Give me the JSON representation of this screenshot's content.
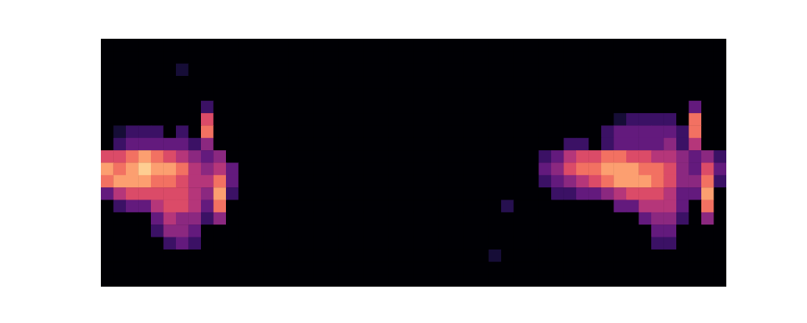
{
  "chart_data": {
    "type": "heatmap",
    "tick_labels": false,
    "color_range": [
      0,
      1
    ],
    "cells": [
      [
        0,
        0,
        0,
        0,
        0,
        0,
        0,
        0,
        0,
        0,
        0,
        0,
        0,
        0,
        0,
        0,
        0,
        0,
        0,
        0,
        0,
        0,
        0,
        0,
        0,
        0,
        0,
        0,
        0,
        0,
        0,
        0,
        0,
        0,
        0,
        0,
        0,
        0,
        0,
        0,
        0,
        0,
        0,
        0,
        0,
        0,
        0,
        0,
        0,
        0
      ],
      [
        0,
        0,
        0,
        0,
        0,
        0,
        0,
        0,
        0,
        0,
        0,
        0,
        0,
        0,
        0,
        0,
        0,
        0,
        0,
        0,
        0,
        0,
        0,
        0,
        0,
        0,
        0,
        0,
        0,
        0,
        0,
        0,
        0,
        0,
        0,
        0,
        0,
        0,
        0,
        0,
        0,
        0,
        0,
        0,
        0,
        0,
        0,
        0,
        0,
        0
      ],
      [
        0,
        0,
        0,
        0,
        0,
        0,
        0.1,
        0,
        0,
        0,
        0,
        0,
        0,
        0,
        0,
        0,
        0,
        0,
        0,
        0,
        0,
        0,
        0,
        0,
        0,
        0,
        0,
        0,
        0,
        0,
        0,
        0,
        0,
        0,
        0,
        0,
        0,
        0,
        0,
        0,
        0,
        0,
        0,
        0,
        0,
        0,
        0,
        0,
        0,
        0
      ],
      [
        0,
        0,
        0,
        0,
        0,
        0,
        0,
        0,
        0,
        0,
        0,
        0,
        0,
        0,
        0,
        0,
        0,
        0,
        0,
        0,
        0,
        0,
        0,
        0,
        0,
        0,
        0,
        0,
        0,
        0,
        0,
        0,
        0,
        0,
        0,
        0,
        0,
        0,
        0,
        0,
        0,
        0,
        0,
        0,
        0,
        0,
        0,
        0,
        0,
        0
      ],
      [
        0,
        0,
        0,
        0,
        0,
        0,
        0,
        0,
        0,
        0,
        0,
        0,
        0,
        0,
        0,
        0,
        0,
        0,
        0,
        0,
        0,
        0,
        0,
        0,
        0,
        0,
        0,
        0,
        0,
        0,
        0,
        0,
        0,
        0,
        0,
        0,
        0,
        0,
        0,
        0,
        0,
        0,
        0,
        0,
        0,
        0,
        0,
        0,
        0,
        0
      ],
      [
        0,
        0,
        0,
        0,
        0,
        0,
        0,
        0,
        0.2,
        0,
        0,
        0,
        0,
        0,
        0,
        0,
        0,
        0,
        0,
        0,
        0,
        0,
        0,
        0,
        0,
        0,
        0,
        0,
        0,
        0,
        0,
        0,
        0,
        0,
        0,
        0,
        0,
        0,
        0,
        0,
        0,
        0,
        0,
        0,
        0,
        0,
        0,
        0.3,
        0,
        0
      ],
      [
        0,
        0,
        0,
        0,
        0,
        0,
        0,
        0,
        0.6,
        0,
        0,
        0,
        0,
        0,
        0,
        0,
        0,
        0,
        0,
        0,
        0,
        0,
        0,
        0,
        0,
        0,
        0,
        0,
        0,
        0,
        0,
        0,
        0,
        0,
        0,
        0,
        0,
        0,
        0,
        0,
        0,
        0.1,
        0.2,
        0.2,
        0.2,
        0.2,
        0,
        0.7,
        0,
        0
      ],
      [
        0,
        0.1,
        0.2,
        0.2,
        0.2,
        0,
        0.2,
        0,
        0.7,
        0,
        0,
        0,
        0,
        0,
        0,
        0,
        0,
        0,
        0,
        0,
        0,
        0,
        0,
        0,
        0,
        0,
        0,
        0,
        0,
        0,
        0,
        0,
        0,
        0,
        0,
        0,
        0,
        0,
        0,
        0,
        0.2,
        0.3,
        0.3,
        0.3,
        0.3,
        0.3,
        0.2,
        0.7,
        0,
        0
      ],
      [
        0,
        0.2,
        0.3,
        0.3,
        0.3,
        0.3,
        0.3,
        0.2,
        0.4,
        0,
        0,
        0,
        0,
        0,
        0,
        0,
        0,
        0,
        0,
        0,
        0,
        0,
        0,
        0,
        0,
        0,
        0,
        0,
        0,
        0,
        0,
        0,
        0,
        0,
        0,
        0,
        0,
        0.2,
        0.2,
        0,
        0.2,
        0.3,
        0.3,
        0.3,
        0.3,
        0.4,
        0.2,
        0.5,
        0,
        0
      ],
      [
        0.6,
        0.6,
        0.7,
        0.8,
        0.7,
        0.6,
        0.5,
        0.4,
        0.3,
        0.4,
        0,
        0,
        0,
        0,
        0,
        0,
        0,
        0,
        0,
        0,
        0,
        0,
        0,
        0,
        0,
        0,
        0,
        0,
        0,
        0,
        0,
        0,
        0,
        0,
        0,
        0.2,
        0.3,
        0.5,
        0.6,
        0.6,
        0.7,
        0.7,
        0.6,
        0.6,
        0.5,
        0.5,
        0.4,
        0.3,
        0.4,
        0.2
      ],
      [
        0.8,
        0.7,
        0.8,
        0.9,
        0.8,
        0.8,
        0.7,
        0.5,
        0.4,
        0.5,
        0.3,
        0,
        0,
        0,
        0,
        0,
        0,
        0,
        0,
        0,
        0,
        0,
        0,
        0,
        0,
        0,
        0,
        0,
        0,
        0,
        0,
        0,
        0,
        0,
        0,
        0.3,
        0.4,
        0.6,
        0.7,
        0.7,
        0.8,
        0.8,
        0.8,
        0.7,
        0.7,
        0.6,
        0.4,
        0.3,
        0.6,
        0.3
      ],
      [
        0.7,
        0.8,
        0.8,
        0.8,
        0.7,
        0.7,
        0.6,
        0.5,
        0.5,
        0.7,
        0.3,
        0,
        0,
        0,
        0,
        0,
        0,
        0,
        0,
        0,
        0,
        0,
        0,
        0,
        0,
        0,
        0,
        0,
        0,
        0,
        0,
        0,
        0,
        0,
        0,
        0.2,
        0.3,
        0.4,
        0.5,
        0.6,
        0.7,
        0.8,
        0.8,
        0.8,
        0.7,
        0.6,
        0.4,
        0.4,
        0.7,
        0.2
      ],
      [
        0.3,
        0.5,
        0.6,
        0.6,
        0.6,
        0.6,
        0.6,
        0.5,
        0.4,
        0.8,
        0.2,
        0,
        0,
        0,
        0,
        0,
        0,
        0,
        0,
        0,
        0,
        0,
        0,
        0,
        0,
        0,
        0,
        0,
        0,
        0,
        0,
        0,
        0,
        0,
        0,
        0,
        0.2,
        0.2,
        0.3,
        0.3,
        0.4,
        0.5,
        0.6,
        0.6,
        0.6,
        0.5,
        0.3,
        0.3,
        0.8,
        0
      ],
      [
        0,
        0.2,
        0.3,
        0.3,
        0.5,
        0.6,
        0.6,
        0.5,
        0.3,
        0.7,
        0,
        0,
        0,
        0,
        0,
        0,
        0,
        0,
        0,
        0,
        0,
        0,
        0,
        0,
        0,
        0,
        0,
        0,
        0,
        0,
        0,
        0,
        0.15,
        0,
        0,
        0,
        0,
        0,
        0,
        0,
        0,
        0.3,
        0.3,
        0.5,
        0.5,
        0.5,
        0.3,
        0,
        0.7,
        0
      ],
      [
        0,
        0,
        0,
        0,
        0.3,
        0.5,
        0.4,
        0.4,
        0.2,
        0.4,
        0,
        0,
        0,
        0,
        0,
        0,
        0,
        0,
        0,
        0,
        0,
        0,
        0,
        0,
        0,
        0,
        0,
        0,
        0,
        0,
        0,
        0,
        0,
        0,
        0,
        0,
        0,
        0,
        0,
        0,
        0,
        0,
        0,
        0.3,
        0.4,
        0.4,
        0.2,
        0,
        0.4,
        0
      ],
      [
        0,
        0,
        0,
        0,
        0.2,
        0.4,
        0.4,
        0.3,
        0,
        0,
        0,
        0,
        0,
        0,
        0,
        0,
        0,
        0,
        0,
        0,
        0,
        0,
        0,
        0,
        0,
        0,
        0,
        0,
        0,
        0,
        0,
        0,
        0,
        0,
        0,
        0,
        0,
        0,
        0,
        0,
        0,
        0,
        0,
        0,
        0.3,
        0.3,
        0,
        0,
        0,
        0
      ],
      [
        0,
        0,
        0,
        0,
        0,
        0.2,
        0.3,
        0.2,
        0,
        0,
        0,
        0,
        0,
        0,
        0,
        0,
        0,
        0,
        0,
        0,
        0,
        0,
        0,
        0,
        0,
        0,
        0,
        0,
        0,
        0,
        0,
        0,
        0,
        0,
        0,
        0,
        0,
        0,
        0,
        0,
        0,
        0,
        0,
        0,
        0.2,
        0.2,
        0,
        0,
        0,
        0
      ],
      [
        0,
        0,
        0,
        0,
        0,
        0,
        0,
        0,
        0,
        0,
        0,
        0,
        0,
        0,
        0,
        0,
        0,
        0,
        0,
        0,
        0,
        0,
        0,
        0,
        0,
        0,
        0,
        0,
        0,
        0,
        0,
        0.1,
        0,
        0,
        0,
        0,
        0,
        0,
        0,
        0,
        0,
        0,
        0,
        0,
        0,
        0,
        0,
        0,
        0,
        0
      ],
      [
        0,
        0,
        0,
        0,
        0,
        0,
        0,
        0,
        0,
        0,
        0,
        0,
        0,
        0,
        0,
        0,
        0,
        0,
        0,
        0,
        0,
        0,
        0,
        0,
        0,
        0,
        0,
        0,
        0,
        0,
        0,
        0,
        0,
        0,
        0,
        0,
        0,
        0,
        0,
        0,
        0,
        0,
        0,
        0,
        0,
        0,
        0,
        0,
        0,
        0
      ],
      [
        0,
        0,
        0,
        0,
        0,
        0,
        0,
        0,
        0,
        0,
        0,
        0,
        0,
        0,
        0,
        0,
        0,
        0,
        0,
        0,
        0,
        0,
        0,
        0,
        0,
        0,
        0,
        0,
        0,
        0,
        0,
        0,
        0,
        0,
        0,
        0,
        0,
        0,
        0,
        0,
        0,
        0,
        0,
        0,
        0,
        0,
        0,
        0,
        0,
        0
      ]
    ]
  }
}
